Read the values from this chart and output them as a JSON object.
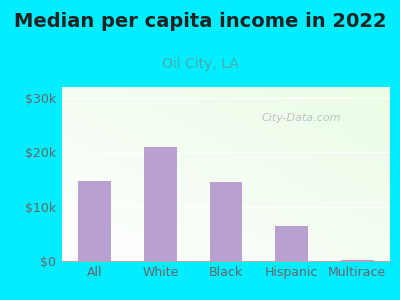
{
  "title": "Median per capita income in 2022",
  "subtitle": "Oil City, LA",
  "categories": [
    "All",
    "White",
    "Black",
    "Hispanic",
    "Multirace"
  ],
  "values": [
    14800,
    21000,
    14500,
    6500,
    200
  ],
  "bar_color": "#b8a0d0",
  "title_fontsize": 14,
  "subtitle_fontsize": 10,
  "subtitle_color": "#4aacac",
  "title_color": "#222222",
  "yticks": [
    0,
    10000,
    20000,
    30000
  ],
  "ytick_labels": [
    "$0",
    "$10k",
    "$20k",
    "$30k"
  ],
  "ylim": [
    0,
    32000
  ],
  "background_outer": "#00eeff",
  "watermark": "City-Data.com",
  "bar_width": 0.5,
  "tick_color": "#666666",
  "tick_fontsize": 9
}
